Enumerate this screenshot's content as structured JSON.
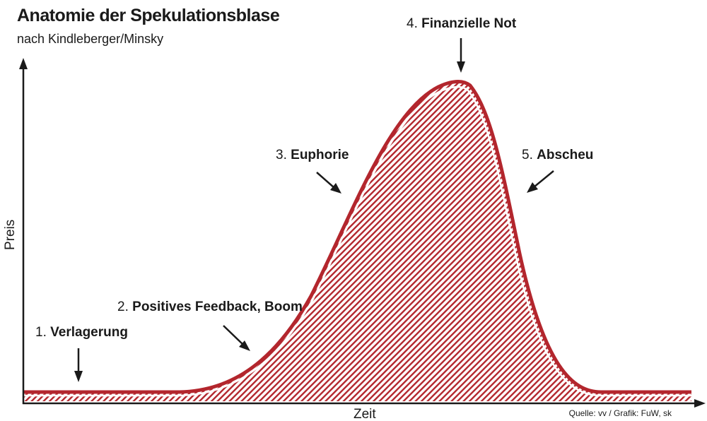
{
  "title": "Anatomie der Spekulationsblase",
  "subtitle": "nach Kindleberger/Minsky",
  "source": "Quelle: vv / Grafik: FuW, sk",
  "axes": {
    "x_label": "Zeit",
    "y_label": "Preis"
  },
  "phases": [
    {
      "number": "1.",
      "name": "Verlagerung"
    },
    {
      "number": "2.",
      "name": "Positives Feedback, Boom"
    },
    {
      "number": "3.",
      "name": "Euphorie"
    },
    {
      "number": "4.",
      "name": "Finanzielle Not"
    },
    {
      "number": "5.",
      "name": "Abscheu"
    }
  ],
  "colors": {
    "curve": "#b3262d",
    "hatch": "#b3262d",
    "axis": "#1a1a1a",
    "text": "#1a1a1a"
  }
}
